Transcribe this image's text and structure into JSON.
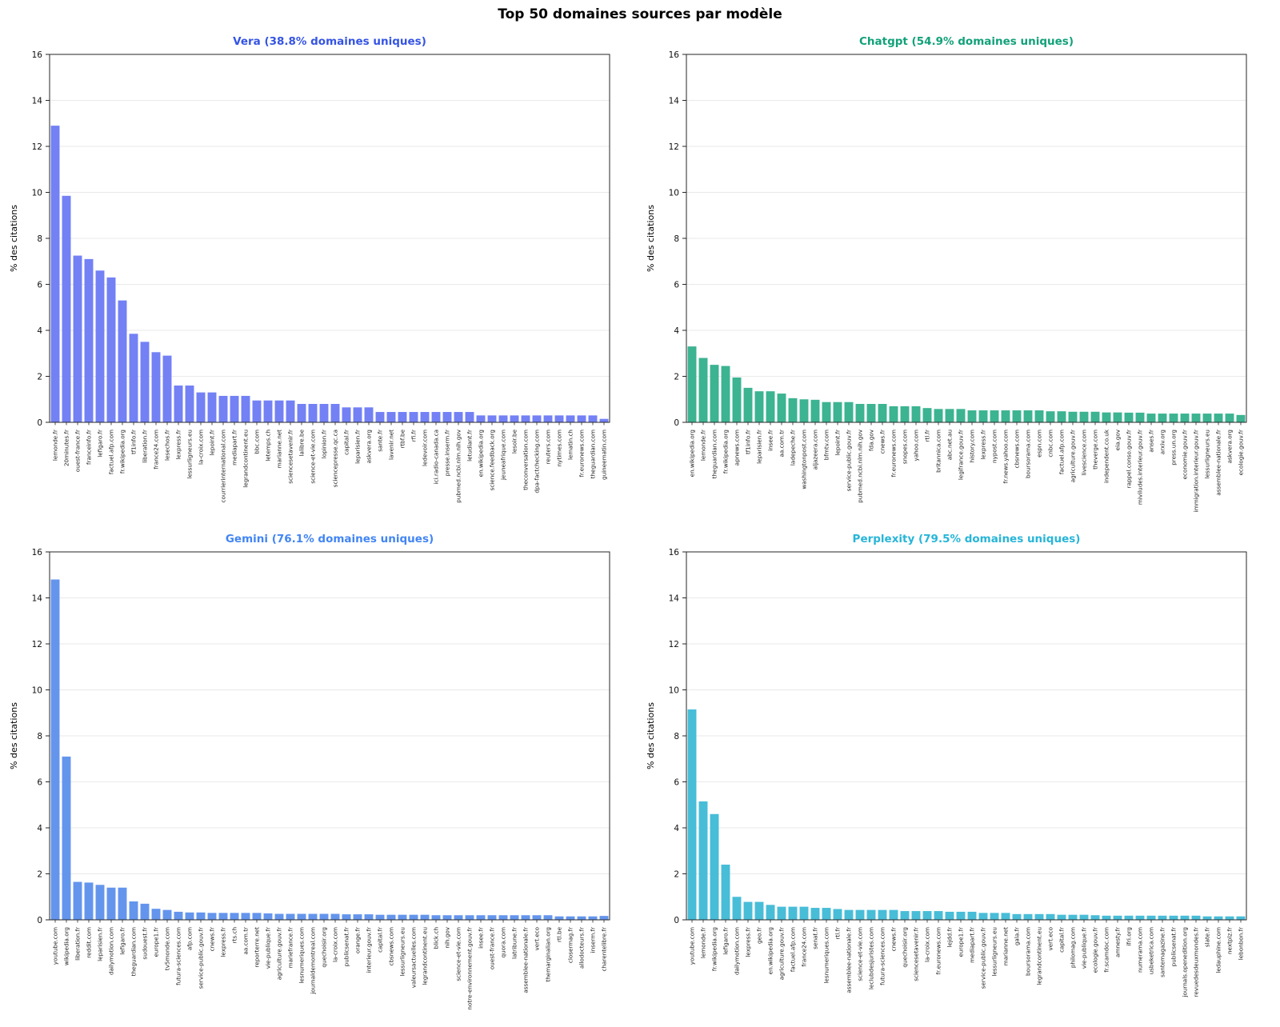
{
  "page_title": "Top 50 domaines sources par modèle",
  "ylabel": "% des citations",
  "y_ticks": [
    0,
    2,
    4,
    6,
    8,
    10,
    12,
    14,
    16
  ],
  "chart_data": [
    {
      "type": "bar",
      "title": "Vera (38.8% domaines uniques)",
      "title_color": "#3554E3",
      "bar_color": "#7381F5",
      "ylabel": "% des citations",
      "xlabel": "",
      "ylim": [
        0,
        16
      ],
      "grid": true,
      "categories": [
        "lemonde.fr",
        "20minutes.fr",
        "ouest-france.fr",
        "franceinfo.fr",
        "lefigaro.fr",
        "factuel.afp.com",
        "fr.wikipedia.org",
        "tf1info.fr",
        "liberation.fr",
        "france24.com",
        "lesechos.fr",
        "lexpress.fr",
        "lessurligneurs.eu",
        "la-croix.com",
        "lepoint.fr",
        "courrierinternational.com",
        "mediapart.fr",
        "legrandcontinent.eu",
        "bbc.com",
        "letemps.ch",
        "marianne.net",
        "sciencesetavenir.fr",
        "lalibre.be",
        "science-et-vie.com",
        "lopinion.fr",
        "sciencepresse.qc.ca",
        "capital.fr",
        "leparisien.fr",
        "askvera.org",
        "sante.fr",
        "lavenir.net",
        "rtbf.be",
        "rfi.fr",
        "ledevoir.com",
        "ici.radio-canada.ca",
        "presse.inserm.fr",
        "pubmed.ncbi.nlm.nih.gov",
        "letudiant.fr",
        "en.wikipedia.org",
        "science.feedback.org",
        "jeuneafrique.com",
        "lesoir.be",
        "theconversation.com",
        "dpa-factchecking.com",
        "reuters.com",
        "nytimes.com",
        "lematin.ch",
        "fr.euronews.com",
        "theguardian.com",
        "guineematin.com"
      ],
      "values": [
        12.9,
        9.85,
        7.25,
        7.1,
        6.6,
        6.3,
        5.3,
        3.85,
        3.5,
        3.05,
        2.9,
        1.6,
        1.6,
        1.3,
        1.3,
        1.15,
        1.15,
        1.15,
        0.95,
        0.95,
        0.95,
        0.95,
        0.8,
        0.8,
        0.8,
        0.8,
        0.65,
        0.65,
        0.65,
        0.45,
        0.45,
        0.45,
        0.45,
        0.45,
        0.45,
        0.45,
        0.45,
        0.45,
        0.3,
        0.3,
        0.3,
        0.3,
        0.3,
        0.3,
        0.3,
        0.3,
        0.3,
        0.3,
        0.3,
        0.15
      ]
    },
    {
      "type": "bar",
      "title": "Chatgpt (54.9% domaines uniques)",
      "title_color": "#12A179",
      "bar_color": "#3CB391",
      "ylabel": "% des citations",
      "xlabel": "",
      "ylim": [
        0,
        16
      ],
      "grid": true,
      "categories": [
        "en.wikipedia.org",
        "lemonde.fr",
        "theguardian.com",
        "fr.wikipedia.org",
        "apnews.com",
        "tf1info.fr",
        "leparisien.fr",
        "insee.fr",
        "aa.com.tr",
        "ladepeche.fr",
        "washingtonpost.com",
        "aljazeera.com",
        "bfmtv.com",
        "lepoint.fr",
        "service-public.gouv.fr",
        "pubmed.ncbi.nlm.nih.gov",
        "fda.gov",
        "cnews.fr",
        "fr.euronews.com",
        "snopes.com",
        "yahoo.com",
        "rtl.fr",
        "britannica.com",
        "abc.net.au",
        "legifrance.gouv.fr",
        "history.com",
        "lexpress.fr",
        "nypost.com",
        "fr.news.yahoo.com",
        "cbsnews.com",
        "boursorama.com",
        "espn.com",
        "cnbc.com",
        "factuel.afp.com",
        "agriculture.gouv.fr",
        "livescience.com",
        "theverge.com",
        "independent.co.uk",
        "eia.gov",
        "rappel.conso.gouv.fr",
        "miviludes.interieur.gouv.fr",
        "anses.fr",
        "arxiv.org",
        "press.un.org",
        "economie.gouv.fr",
        "immigration.interieur.gouv.fr",
        "lessurligneurs.eu",
        "assemblee-nationale.fr",
        "askvera.org",
        "ecologie.gouv.fr"
      ],
      "values": [
        3.3,
        2.8,
        2.5,
        2.45,
        1.95,
        1.5,
        1.35,
        1.35,
        1.25,
        1.05,
        1.0,
        0.98,
        0.88,
        0.88,
        0.88,
        0.8,
        0.8,
        0.8,
        0.7,
        0.7,
        0.7,
        0.62,
        0.58,
        0.58,
        0.58,
        0.52,
        0.52,
        0.52,
        0.52,
        0.52,
        0.52,
        0.52,
        0.48,
        0.48,
        0.46,
        0.46,
        0.46,
        0.43,
        0.43,
        0.42,
        0.42,
        0.38,
        0.38,
        0.38,
        0.38,
        0.38,
        0.38,
        0.38,
        0.38,
        0.32
      ]
    },
    {
      "type": "bar",
      "title": "Gemini (76.1% domaines uniques)",
      "title_color": "#4285F4",
      "bar_color": "#6495ED",
      "ylabel": "% des citations",
      "xlabel": "",
      "ylim": [
        0,
        16
      ],
      "grid": true,
      "categories": [
        "youtube.com",
        "wikipedia.org",
        "liberation.fr",
        "reddit.com",
        "leparisien.fr",
        "dailymotion.com",
        "lefigaro.fr",
        "theguardian.com",
        "sudouest.fr",
        "europe1.fr",
        "tv5monde.com",
        "futura-sciences.com",
        "afp.com",
        "service-public.gouv.fr",
        "cnews.fr",
        "lexpress.fr",
        "rts.ch",
        "aa.com.tr",
        "reporterre.net",
        "vie-publique.fr",
        "agriculture.gouv.fr",
        "mariefrance.fr",
        "lesnumeriques.com",
        "journaldemontreal.com",
        "quechoisir.org",
        "la-croix.com",
        "publicsenat.fr",
        "orange.fr",
        "interieur.gouv.fr",
        "capital.fr",
        "cbsnews.com",
        "lessurligneurs.eu",
        "valeursactuelles.com",
        "legrandcontinent.eu",
        "blick.ch",
        "nih.gov",
        "science-et-vie.com",
        "notre-environnement.gouv.fr",
        "insee.fr",
        "ouest-france.fr",
        "quora.com",
        "latribune.fr",
        "assemblee-nationale.fr",
        "vert.eco",
        "themarginalian.org",
        "rtl.be",
        "closermag.fr",
        "allodocteurs.fr",
        "inserm.fr",
        "charentelibre.fr"
      ],
      "values": [
        14.8,
        7.1,
        1.65,
        1.62,
        1.52,
        1.4,
        1.4,
        0.8,
        0.7,
        0.48,
        0.43,
        0.35,
        0.32,
        0.32,
        0.3,
        0.3,
        0.3,
        0.3,
        0.3,
        0.28,
        0.26,
        0.26,
        0.26,
        0.26,
        0.26,
        0.26,
        0.24,
        0.24,
        0.24,
        0.22,
        0.22,
        0.22,
        0.22,
        0.22,
        0.2,
        0.2,
        0.2,
        0.2,
        0.2,
        0.2,
        0.2,
        0.2,
        0.2,
        0.2,
        0.2,
        0.15,
        0.15,
        0.15,
        0.15,
        0.17
      ]
    },
    {
      "type": "bar",
      "title": "Perplexity (79.5% domaines uniques)",
      "title_color": "#27B5D8",
      "bar_color": "#48BDD8",
      "ylabel": "% des citations",
      "xlabel": "",
      "ylim": [
        0,
        16
      ],
      "grid": true,
      "categories": [
        "youtube.com",
        "lemonde.fr",
        "fr.wikipedia.org",
        "lefigaro.fr",
        "dailymotion.com",
        "lexpress.fr",
        "geo.fr",
        "en.wikipedia.org",
        "agriculture.gouv.fr",
        "factuel.afp.com",
        "france24.com",
        "senat.fr",
        "lesnumeriques.com",
        "rtl.fr",
        "assemblee-nationale.fr",
        "science-et-vie.com",
        "leclubdesjuristes.com",
        "futura-sciences.com",
        "cnews.fr",
        "quechoisir.org",
        "sciencesetavenir.fr",
        "la-croix.com",
        "fr.euronews.com",
        "lejdd.fr",
        "europe1.fr",
        "mediapart.fr",
        "service-public.gouv.fr",
        "lessurligneurs.eu",
        "marianne.net",
        "gala.fr",
        "boursorama.com",
        "legrandcontinent.eu",
        "vert.eco",
        "capital.fr",
        "philomag.com",
        "vie-publique.fr",
        "ecologie.gouv.fr",
        "fr.scamdoc.com",
        "amnesty.fr",
        "ifri.org",
        "numerama.com",
        "usbeketrica.com",
        "santemagazine.fr",
        "publicsenat.fr",
        "journals.openedition.org",
        "revuedesdeuxmondes.fr",
        "slate.fr",
        "ledauphine.com",
        "nextplz.fr",
        "lebonbon.fr"
      ],
      "values": [
        9.15,
        5.15,
        4.6,
        2.4,
        1.0,
        0.78,
        0.78,
        0.65,
        0.57,
        0.57,
        0.57,
        0.52,
        0.52,
        0.47,
        0.43,
        0.43,
        0.43,
        0.43,
        0.43,
        0.38,
        0.38,
        0.38,
        0.38,
        0.35,
        0.35,
        0.35,
        0.3,
        0.3,
        0.3,
        0.25,
        0.25,
        0.25,
        0.25,
        0.22,
        0.22,
        0.22,
        0.2,
        0.18,
        0.18,
        0.18,
        0.18,
        0.18,
        0.18,
        0.18,
        0.18,
        0.18,
        0.15,
        0.15,
        0.15,
        0.15
      ]
    }
  ]
}
